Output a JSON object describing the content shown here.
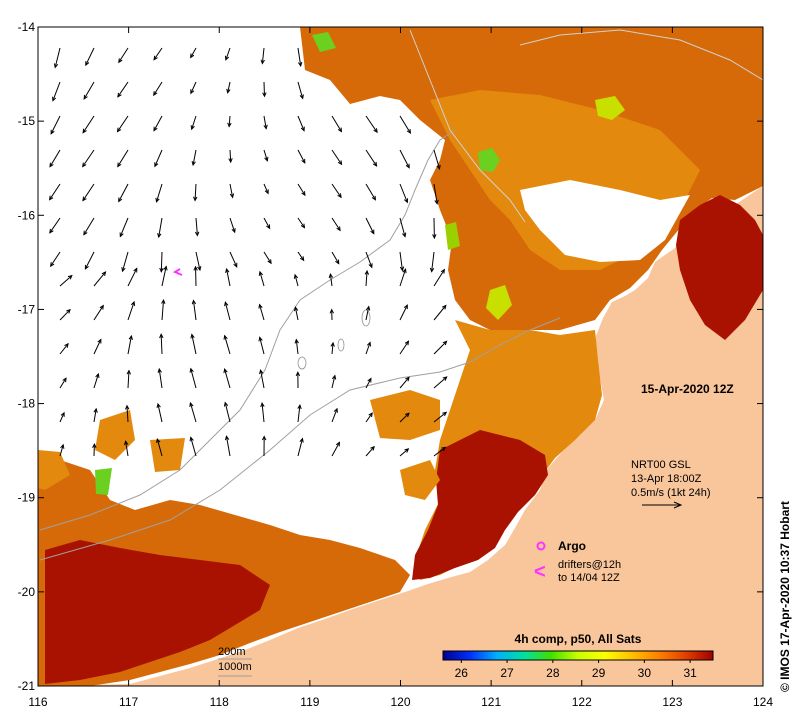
{
  "map": {
    "timestamp": "15-Apr-2020 12Z",
    "lon_range": [
      116,
      124
    ],
    "lat_range": [
      -21,
      -14
    ],
    "x_ticks": [
      "116",
      "117",
      "118",
      "119",
      "120",
      "121",
      "122",
      "123",
      "124"
    ],
    "y_ticks": [
      "-14",
      "-15",
      "-16",
      "-17",
      "-18",
      "-19",
      "-20",
      "-21"
    ],
    "credit": "© IMOS 17-Apr-2020 10:37 Hobart"
  },
  "current_legend": {
    "line1": "NRT00 GSL",
    "line2": "13-Apr 18:00Z",
    "line3": "0.5m/s (1kt 24h)"
  },
  "argo_legend": {
    "argo_label": "Argo",
    "drifters_line1": "drifters@12h",
    "drifters_line2": "to 14/04 12Z",
    "drifter_symbol": "<"
  },
  "isobath_legend": {
    "line1": "200m",
    "line2": "1000m"
  },
  "colorbar": {
    "title": "4h comp, p50, All Sats",
    "ticks": [
      "26",
      "27",
      "28",
      "29",
      "30",
      "31"
    ],
    "range": [
      25.6,
      31.5
    ],
    "stops": [
      "#00008f",
      "#0030ff",
      "#00b0ff",
      "#00e0a0",
      "#40e000",
      "#c8ff00",
      "#ffff00",
      "#ffc000",
      "#ff8000",
      "#e04000",
      "#a00000"
    ]
  },
  "colors": {
    "land": "#f9c59a",
    "sst_warm": "#d66a08",
    "sst_mid": "#e3890e",
    "sst_hot": "#a91200",
    "cloud": "#ffffff",
    "green_patch": "#6cd021",
    "argo": "#ff33ff"
  }
}
